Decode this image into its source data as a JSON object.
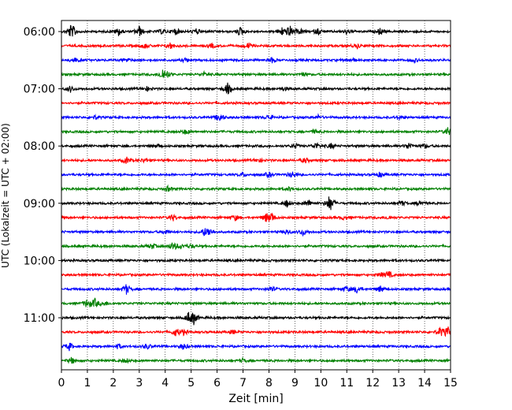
{
  "chart_data": {
    "type": "line",
    "title": "",
    "xlabel": "Zeit  [min]",
    "ylabel": "UTC (Lokalzeit = UTC + 02:00)",
    "xlim": [
      0,
      15
    ],
    "x_ticks": [
      "0",
      "1",
      "2",
      "3",
      "4",
      "5",
      "6",
      "7",
      "8",
      "9",
      "10",
      "11",
      "12",
      "13",
      "14",
      "15"
    ],
    "y_ticks": [
      "06:00",
      "07:00",
      "08:00",
      "09:00",
      "10:00",
      "11:00"
    ],
    "grid": "vertical dotted",
    "legend": "none",
    "colors": [
      "#000000",
      "#ff0000",
      "#0000ff",
      "#008000"
    ],
    "traces": [
      {
        "start": "06:00",
        "color": "#000000",
        "events": [
          [
            0.35,
            0.9
          ],
          [
            0.5,
            0.5
          ],
          [
            2.2,
            0.6
          ],
          [
            3.0,
            0.8
          ],
          [
            3.9,
            0.4
          ],
          [
            4.4,
            0.5
          ],
          [
            5.2,
            0.4
          ],
          [
            6.9,
            0.7
          ],
          [
            8.5,
            0.6
          ],
          [
            8.8,
            0.9
          ],
          [
            9.2,
            0.4
          ],
          [
            9.9,
            0.5
          ],
          [
            11.0,
            0.4
          ],
          [
            12.3,
            0.5
          ]
        ]
      },
      {
        "start": "06:15",
        "color": "#ff0000",
        "events": [
          [
            3.2,
            0.4
          ],
          [
            4.2,
            0.5
          ],
          [
            5.8,
            0.3
          ],
          [
            7.2,
            0.4
          ],
          [
            11.4,
            0.3
          ]
        ]
      },
      {
        "start": "06:30",
        "color": "#0000ff",
        "events": [
          [
            0.5,
            0.4
          ],
          [
            2.5,
            0.3
          ],
          [
            4.8,
            0.3
          ],
          [
            8.1,
            0.4
          ],
          [
            11.2,
            0.3
          ],
          [
            13.6,
            0.3
          ]
        ]
      },
      {
        "start": "06:45",
        "color": "#008000",
        "events": [
          [
            3.9,
            0.9
          ],
          [
            4.1,
            0.4
          ],
          [
            5.5,
            0.3
          ],
          [
            9.3,
            0.3
          ]
        ]
      },
      {
        "start": "07:00",
        "color": "#000000",
        "events": [
          [
            0.35,
            0.5
          ],
          [
            3.3,
            0.3
          ],
          [
            6.4,
            0.9
          ],
          [
            8.6,
            0.3
          ]
        ]
      },
      {
        "start": "07:15",
        "color": "#ff0000",
        "events": []
      },
      {
        "start": "07:30",
        "color": "#0000ff",
        "events": [
          [
            1.3,
            0.3
          ],
          [
            6.1,
            0.7
          ],
          [
            8.0,
            0.4
          ],
          [
            9.9,
            0.3
          ],
          [
            13.0,
            0.3
          ]
        ]
      },
      {
        "start": "07:45",
        "color": "#008000",
        "events": [
          [
            4.8,
            0.4
          ],
          [
            9.8,
            0.3
          ],
          [
            14.9,
            0.6
          ]
        ]
      },
      {
        "start": "08:00",
        "color": "#000000",
        "events": [
          [
            3.7,
            0.3
          ],
          [
            9.0,
            0.4
          ],
          [
            9.8,
            0.5
          ],
          [
            10.4,
            0.4
          ],
          [
            13.4,
            0.6
          ],
          [
            14.0,
            0.3
          ]
        ]
      },
      {
        "start": "08:15",
        "color": "#ff0000",
        "events": [
          [
            2.5,
            0.5
          ],
          [
            3.2,
            0.3
          ],
          [
            7.6,
            0.3
          ],
          [
            9.4,
            0.4
          ]
        ]
      },
      {
        "start": "08:30",
        "color": "#0000ff",
        "events": [
          [
            7.0,
            0.3
          ],
          [
            8.0,
            0.4
          ],
          [
            8.9,
            0.5
          ],
          [
            12.3,
            0.4
          ]
        ]
      },
      {
        "start": "08:45",
        "color": "#008000",
        "events": [
          [
            4.1,
            0.4
          ],
          [
            8.8,
            0.3
          ]
        ]
      },
      {
        "start": "09:00",
        "color": "#000000",
        "events": [
          [
            8.7,
            0.6
          ],
          [
            9.5,
            0.5
          ],
          [
            10.35,
            1.4
          ],
          [
            13.1,
            0.4
          ],
          [
            13.8,
            0.4
          ]
        ]
      },
      {
        "start": "09:15",
        "color": "#ff0000",
        "events": [
          [
            4.3,
            0.5
          ],
          [
            6.7,
            0.4
          ],
          [
            7.9,
            0.6
          ],
          [
            8.1,
            0.7
          ],
          [
            10.9,
            0.3
          ],
          [
            12.6,
            0.3
          ]
        ]
      },
      {
        "start": "09:30",
        "color": "#0000ff",
        "events": [
          [
            4.0,
            0.4
          ],
          [
            5.5,
            0.5
          ],
          [
            5.7,
            0.6
          ],
          [
            8.7,
            0.4
          ],
          [
            9.3,
            0.5
          ]
        ]
      },
      {
        "start": "09:45",
        "color": "#008000",
        "events": [
          [
            3.5,
            0.4
          ],
          [
            4.3,
            0.6
          ],
          [
            4.6,
            0.4
          ],
          [
            5.0,
            0.3
          ]
        ]
      },
      {
        "start": "10:00",
        "color": "#000000",
        "events": []
      },
      {
        "start": "10:15",
        "color": "#ff0000",
        "events": [
          [
            12.6,
            0.6
          ],
          [
            12.3,
            0.3
          ]
        ]
      },
      {
        "start": "10:30",
        "color": "#0000ff",
        "events": [
          [
            2.5,
            0.8
          ],
          [
            8.1,
            0.4
          ],
          [
            11.0,
            0.4
          ],
          [
            11.4,
            0.6
          ],
          [
            12.3,
            0.5
          ]
        ]
      },
      {
        "start": "10:45",
        "color": "#008000",
        "events": [
          [
            1.0,
            0.7
          ],
          [
            1.3,
            0.7
          ],
          [
            1.7,
            0.3
          ]
        ]
      },
      {
        "start": "11:00",
        "color": "#000000",
        "events": [
          [
            4.9,
            0.7
          ],
          [
            5.1,
            0.9
          ]
        ]
      },
      {
        "start": "11:15",
        "color": "#ff0000",
        "events": [
          [
            4.4,
            0.6
          ],
          [
            4.7,
            0.4
          ],
          [
            6.6,
            0.3
          ],
          [
            14.6,
            0.7
          ],
          [
            14.9,
            0.8
          ]
        ]
      },
      {
        "start": "11:30",
        "color": "#0000ff",
        "events": [
          [
            0.3,
            0.6
          ],
          [
            2.2,
            0.4
          ],
          [
            3.3,
            0.4
          ],
          [
            4.7,
            0.5
          ]
        ]
      },
      {
        "start": "11:45",
        "color": "#008000",
        "events": [
          [
            0.4,
            0.5
          ],
          [
            2.5,
            0.3
          ],
          [
            7.0,
            0.3
          ]
        ]
      }
    ]
  }
}
